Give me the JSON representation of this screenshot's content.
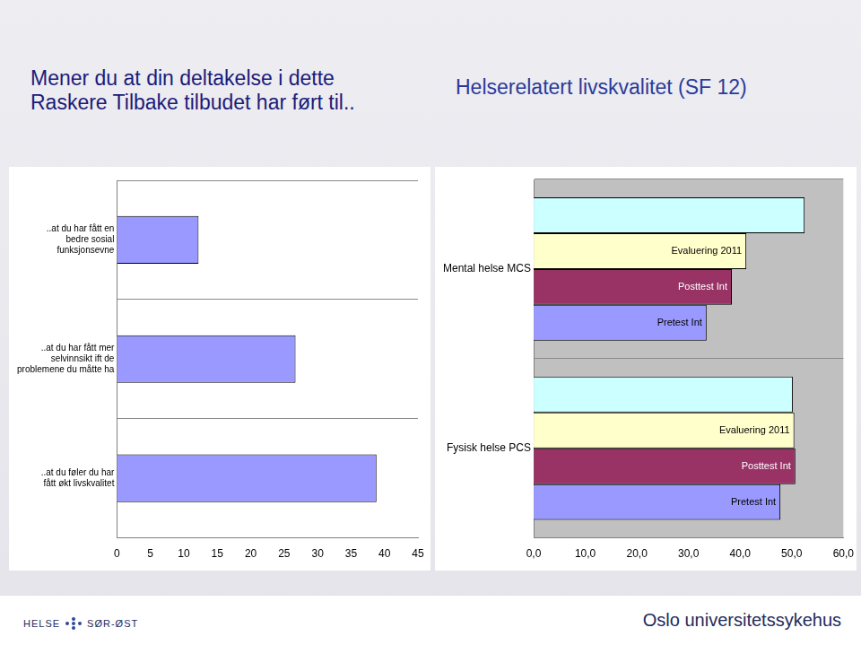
{
  "chart_data": [
    {
      "type": "bar",
      "title": "Mener du at din deltakelse i dette\nRaskere Tilbake tilbudet har ført til..",
      "orientation": "horizontal",
      "categories": [
        "..at du har fått en bedre sosial funksjonsevne",
        "..at du har fått mer selvinnsikt ift de problemene du måtte ha",
        "..at du føler du har fått økt livskvalitet"
      ],
      "values": [
        12.2,
        26.7,
        38.8
      ],
      "color": "#9999ff",
      "xlim": [
        0,
        45
      ],
      "xticks": [
        0,
        5,
        10,
        15,
        20,
        25,
        30,
        35,
        40,
        45
      ],
      "grid": true
    },
    {
      "type": "bar",
      "title": "Helserelatert livskvalitet (SF 12)",
      "orientation": "horizontal",
      "categories": [
        "Mental helse MCS",
        "Fysisk helse PCS"
      ],
      "series": [
        {
          "color": "#ccffff",
          "values": [
            52.5,
            50.2
          ]
        },
        {
          "name": "Evaluering 2011",
          "color": "#ffffcc",
          "values": [
            41.2,
            50.5
          ]
        },
        {
          "name": "Posttest Int",
          "color": "#993366",
          "values": [
            38.4,
            50.7
          ]
        },
        {
          "name": "Pretest Int",
          "color": "#9999ff",
          "values": [
            33.5,
            47.8
          ]
        }
      ],
      "xlim": [
        0,
        60
      ],
      "xticks": [
        {
          "value": 0,
          "label": "0,0"
        },
        {
          "value": 10,
          "label": "10,0"
        },
        {
          "value": 20,
          "label": "20,0"
        },
        {
          "value": 30,
          "label": "30,0"
        },
        {
          "value": 40,
          "label": "40,0"
        },
        {
          "value": 50,
          "label": "50,0"
        },
        {
          "value": 60,
          "label": "60,0"
        }
      ],
      "grid": true
    }
  ],
  "footer": {
    "logo": [
      "HELSE",
      "SØR-ØST"
    ],
    "name": "Oslo universitetssykehus"
  }
}
